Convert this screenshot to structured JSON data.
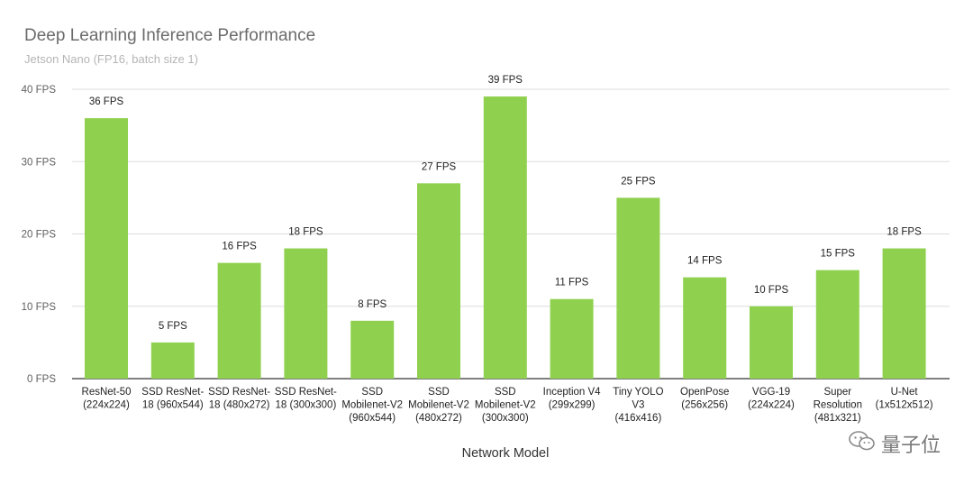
{
  "chart_data": {
    "type": "bar",
    "title": "Deep Learning Inference Performance",
    "subtitle": "Jetson Nano (FP16, batch size 1)",
    "xlabel": "Network Model",
    "ylabel": "",
    "ylim": [
      0,
      40
    ],
    "yticks": [
      0,
      10,
      20,
      30,
      40
    ],
    "ytick_labels": [
      "0 FPS",
      "10 FPS",
      "20 FPS",
      "30 FPS",
      "40 FPS"
    ],
    "grid": true,
    "bar_color": "#8fd14f",
    "categories": [
      [
        "ResNet-50",
        "(224x224)"
      ],
      [
        "SSD ResNet-",
        "18 (960x544)"
      ],
      [
        "SSD ResNet-",
        "18 (480x272)"
      ],
      [
        "SSD ResNet-",
        "18 (300x300)"
      ],
      [
        "SSD",
        "Mobilenet-V2",
        "(960x544)"
      ],
      [
        "SSD",
        "Mobilenet-V2",
        "(480x272)"
      ],
      [
        "SSD",
        "Mobilenet-V2",
        "(300x300)"
      ],
      [
        "Inception V4",
        "(299x299)"
      ],
      [
        "Tiny YOLO",
        "V3",
        "(416x416)"
      ],
      [
        "OpenPose",
        "(256x256)"
      ],
      [
        "VGG-19",
        "(224x224)"
      ],
      [
        "Super",
        "Resolution",
        "(481x321)"
      ],
      [
        "U-Net",
        "(1x512x512)"
      ]
    ],
    "values": [
      36,
      5,
      16,
      18,
      8,
      27,
      39,
      11,
      25,
      14,
      10,
      15,
      18
    ],
    "data_labels": [
      "36 FPS",
      "5 FPS",
      "16 FPS",
      "18 FPS",
      "8 FPS",
      "27 FPS",
      "39 FPS",
      "11 FPS",
      "25 FPS",
      "14 FPS",
      "10 FPS",
      "15 FPS",
      "18 FPS"
    ]
  },
  "watermark": {
    "text": "量子位",
    "icon": "wechat-icon"
  }
}
